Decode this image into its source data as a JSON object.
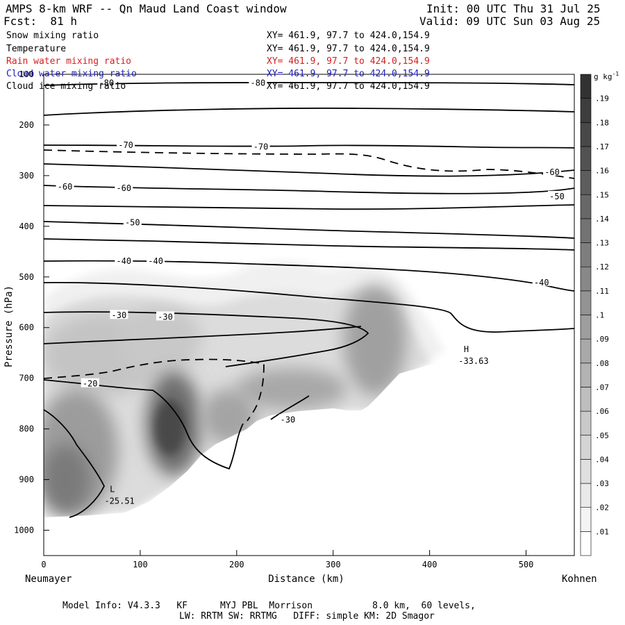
{
  "header": {
    "title": "AMPS 8-km WRF -- Qn Maud Land Coast window",
    "init": "Init: 00 UTC Thu 31 Jul 25",
    "fcst": "Fcst:  81 h",
    "valid": "Valid: 09 UTC Sun 03 Aug 25",
    "fields": [
      {
        "name": "Snow mixing ratio",
        "xy": "XY= 461.9, 97.7 to 424.0,154.9",
        "color": "#000000"
      },
      {
        "name": "Temperature",
        "xy": "XY= 461.9, 97.7 to 424.0,154.9",
        "color": "#000000"
      },
      {
        "name": "Rain water mixing ratio",
        "xy": "XY= 461.9, 97.7 to 424.0,154.9",
        "color": "#d42020"
      },
      {
        "name": "Cloud water mixing ratio",
        "xy": "XY= 461.9, 97.7 to 424.0,154.9",
        "color": "#2020b8"
      },
      {
        "name": "Cloud ice mixing ratio",
        "xy": "XY= 461.9, 97.7 to 424.0,154.9",
        "color": "#000000"
      }
    ]
  },
  "chart_data": {
    "type": "cross-section",
    "xlabel": "Distance (km)",
    "ylabel": "Pressure (hPa)",
    "xlim": [
      0,
      550
    ],
    "ylim": [
      1050,
      100
    ],
    "x_ticks": [
      0,
      100,
      200,
      300,
      400,
      500
    ],
    "y_ticks": [
      100,
      200,
      300,
      400,
      500,
      600,
      700,
      800,
      900,
      1000
    ],
    "left_end_label": "Neumayer",
    "right_end_label": "Kohnen",
    "colorbar": {
      "unit": "g kg",
      "unit_exponent": "-1",
      "range": [
        0,
        0.2
      ],
      "ticks": [
        ".01",
        ".02",
        ".03",
        ".04",
        ".05",
        ".06",
        ".07",
        ".08",
        ".09",
        ".1",
        ".11",
        ".12",
        ".13",
        ".14",
        ".15",
        ".16",
        ".17",
        ".18",
        ".19"
      ]
    },
    "temperature_contour_labels": [
      {
        "label": "-80",
        "x": 65,
        "p": 117
      },
      {
        "label": "-80",
        "x": 222,
        "p": 117
      },
      {
        "label": "-70",
        "x": 85,
        "p": 240
      },
      {
        "label": "-70",
        "x": 225,
        "p": 243
      },
      {
        "label": "-60",
        "x": 22,
        "p": 322
      },
      {
        "label": "-60",
        "x": 83,
        "p": 325
      },
      {
        "label": "-60",
        "x": 527,
        "p": 293
      },
      {
        "label": "-50",
        "x": 92,
        "p": 393
      },
      {
        "label": "-50",
        "x": 532,
        "p": 341
      },
      {
        "label": "-40",
        "x": 83,
        "p": 469
      },
      {
        "label": "-40",
        "x": 116,
        "p": 469
      },
      {
        "label": "-40",
        "x": 516,
        "p": 511
      },
      {
        "label": "-30",
        "x": 78,
        "p": 576
      },
      {
        "label": "-30",
        "x": 126,
        "p": 579
      },
      {
        "label": "-20",
        "x": 48,
        "p": 711
      },
      {
        "label": "-30",
        "x": 253,
        "p": 782
      }
    ],
    "extrema": [
      {
        "type": "H",
        "value": "-33.63",
        "x": 447,
        "p": 651
      },
      {
        "type": "L",
        "value": "-25.51",
        "x": 80,
        "p": 927
      }
    ]
  },
  "footer": {
    "line1": "Model Info: V4.3.3   KF      MYJ PBL  Morrison           8.0 km,  60 levels,",
    "line2": "LW: RRTM SW: RRTMG   DIFF: simple KM: 2D Smagor"
  }
}
